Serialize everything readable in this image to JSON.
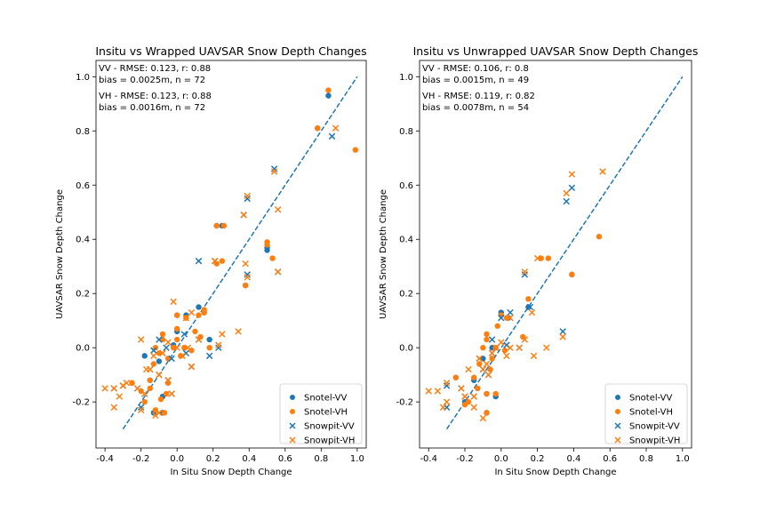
{
  "colors": {
    "vv": "#1f77b4",
    "vh": "#ff7f0e",
    "line": "#1f77b4"
  },
  "chart_data": [
    {
      "type": "scatter",
      "title": "Insitu vs Wrapped UAVSAR Snow Depth Changes",
      "xlabel": "In Situ Snow Depth Change",
      "ylabel": "UAVSAR Snow Depth Change",
      "xlim": [
        -0.45,
        1.05
      ],
      "ylim": [
        -0.37,
        1.06
      ],
      "xticks": [
        "-0.4",
        "-0.2",
        "0.0",
        "0.2",
        "0.4",
        "0.6",
        "0.8",
        "1.0"
      ],
      "yticks": [
        "-0.2",
        "0.0",
        "0.2",
        "0.4",
        "0.6",
        "0.8",
        "1.0"
      ],
      "stats": [
        "VV - RMSE: 0.123, r: 0.88",
        "bias = 0.0025m, n = 72",
        "VH - RMSE: 0.123, r: 0.88",
        "bias = 0.0016m, n = 72"
      ],
      "one_to_one": [
        [
          -0.3,
          -0.3
        ],
        [
          1.0,
          1.0
        ]
      ],
      "legend": [
        "Snotel-VV",
        "Snotel-VH",
        "Snowpit-VV",
        "Snowpit-VH"
      ],
      "legend_position": "lower-right",
      "series": [
        {
          "name": "Snotel-VV",
          "marker": "circle",
          "color": "#1f77b4",
          "points": [
            [
              0.84,
              0.93
            ],
            [
              0.78,
              0.81
            ],
            [
              0.5,
              0.37
            ],
            [
              0.5,
              0.36
            ],
            [
              0.38,
              0.23
            ],
            [
              0.25,
              0.45
            ],
            [
              0.22,
              0.45
            ],
            [
              0.15,
              0.13
            ],
            [
              0.12,
              0.15
            ],
            [
              0.0,
              0.06
            ],
            [
              0.0,
              0.12
            ],
            [
              -0.08,
              -0.24
            ],
            [
              -0.08,
              -0.18
            ],
            [
              -0.13,
              -0.24
            ],
            [
              -0.15,
              -0.12
            ],
            [
              -0.18,
              -0.03
            ],
            [
              -0.25,
              -0.13
            ],
            [
              -0.02,
              0.01
            ],
            [
              -0.1,
              -0.05
            ],
            [
              0.05,
              0.12
            ],
            [
              0.18,
              0.03
            ]
          ]
        },
        {
          "name": "Snotel-VH",
          "marker": "circle",
          "color": "#ff7f0e",
          "points": [
            [
              0.84,
              0.95
            ],
            [
              0.99,
              0.73
            ],
            [
              0.78,
              0.81
            ],
            [
              0.5,
              0.38
            ],
            [
              0.5,
              0.39
            ],
            [
              0.53,
              0.33
            ],
            [
              0.38,
              0.23
            ],
            [
              0.26,
              0.45
            ],
            [
              0.22,
              0.45
            ],
            [
              0.25,
              0.32
            ],
            [
              0.22,
              0.31
            ],
            [
              0.15,
              0.13
            ],
            [
              0.12,
              0.12
            ],
            [
              0.0,
              0.07
            ],
            [
              0.0,
              0.12
            ],
            [
              -0.07,
              -0.24
            ],
            [
              -0.09,
              -0.19
            ],
            [
              -0.12,
              -0.23
            ],
            [
              -0.15,
              -0.12
            ],
            [
              -0.15,
              -0.15
            ],
            [
              -0.18,
              -0.2
            ],
            [
              -0.2,
              -0.16
            ],
            [
              -0.25,
              -0.13
            ],
            [
              -0.02,
              0.0
            ],
            [
              -0.05,
              -0.04
            ],
            [
              -0.08,
              0.03
            ],
            [
              -0.08,
              0.05
            ],
            [
              -0.12,
              0.0
            ],
            [
              -0.13,
              -0.06
            ],
            [
              -0.1,
              -0.02
            ],
            [
              0.04,
              0.0
            ],
            [
              0.05,
              0.11
            ],
            [
              0.08,
              -0.01
            ],
            [
              0.13,
              0.04
            ],
            [
              0.15,
              0.14
            ],
            [
              0.18,
              0.0
            ],
            [
              0.02,
              -0.03
            ],
            [
              -0.05,
              -0.13
            ],
            [
              -0.06,
              -0.17
            ],
            [
              0.1,
              0.06
            ],
            [
              0.0,
              0.03
            ]
          ]
        },
        {
          "name": "Snowpit-VV",
          "marker": "x",
          "color": "#1f77b4",
          "points": [
            [
              0.86,
              0.78
            ],
            [
              0.54,
              0.66
            ],
            [
              0.56,
              0.28
            ],
            [
              0.39,
              0.55
            ],
            [
              0.39,
              0.27
            ],
            [
              0.37,
              0.49
            ],
            [
              0.21,
              0.32
            ],
            [
              0.12,
              0.32
            ],
            [
              0.12,
              0.03
            ],
            [
              0.18,
              -0.03
            ],
            [
              0.08,
              -0.07
            ],
            [
              -0.03,
              -0.17
            ],
            [
              -0.05,
              -0.12
            ],
            [
              -0.08,
              -0.02
            ],
            [
              -0.1,
              -0.1
            ],
            [
              -0.15,
              -0.08
            ],
            [
              -0.18,
              -0.17
            ],
            [
              -0.22,
              -0.15
            ],
            [
              -0.3,
              -0.14
            ],
            [
              -0.35,
              -0.15
            ],
            [
              -0.2,
              -0.22
            ],
            [
              -0.03,
              -0.04
            ],
            [
              0.05,
              -0.02
            ],
            [
              0.04,
              0.05
            ],
            [
              -0.06,
              0.0
            ],
            [
              -0.13,
              -0.01
            ],
            [
              -0.1,
              0.03
            ],
            [
              0.23,
              0.0
            ]
          ]
        },
        {
          "name": "Snowpit-VH",
          "marker": "x",
          "color": "#ff7f0e",
          "points": [
            [
              0.88,
              0.81
            ],
            [
              0.54,
              0.65
            ],
            [
              0.56,
              0.28
            ],
            [
              0.56,
              0.51
            ],
            [
              0.39,
              0.56
            ],
            [
              0.39,
              0.26
            ],
            [
              0.38,
              0.31
            ],
            [
              0.37,
              0.49
            ],
            [
              0.34,
              0.06
            ],
            [
              0.25,
              0.05
            ],
            [
              0.23,
              0.01
            ],
            [
              0.21,
              0.32
            ],
            [
              0.12,
              0.03
            ],
            [
              0.08,
              -0.07
            ],
            [
              0.08,
              0.13
            ],
            [
              0.05,
              0.11
            ],
            [
              -0.02,
              0.17
            ],
            [
              -0.03,
              -0.17
            ],
            [
              -0.05,
              -0.12
            ],
            [
              -0.08,
              -0.02
            ],
            [
              -0.1,
              -0.1
            ],
            [
              -0.13,
              -0.03
            ],
            [
              -0.15,
              -0.08
            ],
            [
              -0.17,
              -0.08
            ],
            [
              -0.2,
              0.03
            ],
            [
              -0.18,
              -0.17
            ],
            [
              -0.2,
              -0.23
            ],
            [
              -0.22,
              -0.15
            ],
            [
              -0.28,
              -0.13
            ],
            [
              -0.3,
              -0.14
            ],
            [
              -0.32,
              -0.18
            ],
            [
              -0.35,
              -0.15
            ],
            [
              -0.35,
              -0.22
            ],
            [
              -0.4,
              -0.15
            ],
            [
              -0.12,
              -0.25
            ],
            [
              -0.1,
              -0.24
            ],
            [
              0.0,
              0.0
            ],
            [
              0.06,
              0.0
            ],
            [
              -0.05,
              0.02
            ],
            [
              0.03,
              -0.03
            ]
          ]
        }
      ]
    },
    {
      "type": "scatter",
      "title": "Insitu vs Unwrapped UAVSAR Snow Depth Changes",
      "xlabel": "In Situ Snow Depth Change",
      "ylabel": "UAVSAR Snow Depth Change",
      "xlim": [
        -0.45,
        1.05
      ],
      "ylim": [
        -0.37,
        1.06
      ],
      "xticks": [
        "-0.4",
        "-0.2",
        "0.0",
        "0.2",
        "0.4",
        "0.6",
        "0.8",
        "1.0"
      ],
      "yticks": [
        "-0.2",
        "0.0",
        "0.2",
        "0.4",
        "0.6",
        "0.8",
        "1.0"
      ],
      "stats": [
        "VV - RMSE: 0.106, r: 0.8",
        "bias = 0.0015m, n = 49",
        "VH - RMSE: 0.119, r: 0.82",
        "bias = 0.0078m, n = 54"
      ],
      "one_to_one": [
        [
          -0.3,
          -0.3
        ],
        [
          1.0,
          1.0
        ]
      ],
      "legend": [
        "Snotel-VV",
        "Snotel-VH",
        "Snowpit-VV",
        "Snowpit-VH"
      ],
      "legend_position": "lower-right",
      "series": [
        {
          "name": "Snotel-VV",
          "marker": "circle",
          "color": "#1f77b4",
          "points": [
            [
              0.39,
              0.27
            ],
            [
              0.15,
              0.15
            ],
            [
              0.0,
              0.13
            ],
            [
              -0.03,
              -0.18
            ],
            [
              -0.08,
              -0.17
            ],
            [
              -0.08,
              -0.24
            ],
            [
              -0.13,
              -0.15
            ],
            [
              -0.15,
              -0.12
            ],
            [
              -0.2,
              -0.2
            ],
            [
              -0.25,
              -0.11
            ],
            [
              -0.05,
              0.0
            ],
            [
              -0.1,
              -0.04
            ],
            [
              0.04,
              0.11
            ]
          ]
        },
        {
          "name": "Snotel-VH",
          "marker": "circle",
          "color": "#ff7f0e",
          "points": [
            [
              0.54,
              0.41
            ],
            [
              0.39,
              0.27
            ],
            [
              0.26,
              0.33
            ],
            [
              0.22,
              0.33
            ],
            [
              0.15,
              0.18
            ],
            [
              0.12,
              0.04
            ],
            [
              0.0,
              0.12
            ],
            [
              0.03,
              0.11
            ],
            [
              -0.02,
              0.08
            ],
            [
              -0.03,
              -0.17
            ],
            [
              -0.08,
              -0.17
            ],
            [
              -0.08,
              -0.24
            ],
            [
              -0.13,
              -0.15
            ],
            [
              -0.15,
              -0.11
            ],
            [
              -0.18,
              -0.2
            ],
            [
              -0.2,
              -0.21
            ],
            [
              -0.25,
              -0.11
            ],
            [
              -0.08,
              0.05
            ],
            [
              -0.08,
              0.03
            ],
            [
              -0.1,
              0.0
            ],
            [
              -0.12,
              -0.06
            ],
            [
              -0.05,
              -0.04
            ],
            [
              0.02,
              -0.01
            ],
            [
              -0.03,
              0.0
            ],
            [
              -0.06,
              -0.08
            ]
          ]
        },
        {
          "name": "Snowpit-VV",
          "marker": "x",
          "color": "#1f77b4",
          "points": [
            [
              0.39,
              0.59
            ],
            [
              0.36,
              0.54
            ],
            [
              0.34,
              0.06
            ],
            [
              0.13,
              0.27
            ],
            [
              0.16,
              0.15
            ],
            [
              0.05,
              0.13
            ],
            [
              0.0,
              0.11
            ],
            [
              -0.03,
              0.0
            ],
            [
              -0.05,
              -0.02
            ],
            [
              -0.07,
              -0.1
            ],
            [
              -0.1,
              -0.08
            ],
            [
              -0.12,
              -0.04
            ],
            [
              -0.15,
              -0.18
            ],
            [
              -0.2,
              -0.18
            ],
            [
              -0.22,
              -0.15
            ],
            [
              -0.3,
              -0.22
            ],
            [
              -0.3,
              -0.14
            ],
            [
              -0.05,
              0.03
            ],
            [
              0.03,
              0.01
            ],
            [
              0.1,
              0.0
            ]
          ]
        },
        {
          "name": "Snowpit-VH",
          "marker": "x",
          "color": "#ff7f0e",
          "points": [
            [
              0.56,
              0.65
            ],
            [
              0.39,
              0.64
            ],
            [
              0.36,
              0.57
            ],
            [
              0.34,
              0.04
            ],
            [
              0.25,
              0.0
            ],
            [
              0.2,
              0.33
            ],
            [
              0.18,
              -0.03
            ],
            [
              0.17,
              0.13
            ],
            [
              0.13,
              0.03
            ],
            [
              0.13,
              0.28
            ],
            [
              0.1,
              0.0
            ],
            [
              0.05,
              0.11
            ],
            [
              0.03,
              -0.03
            ],
            [
              -0.03,
              0.0
            ],
            [
              -0.05,
              -0.02
            ],
            [
              -0.07,
              -0.1
            ],
            [
              -0.08,
              -0.06
            ],
            [
              -0.1,
              -0.08
            ],
            [
              -0.1,
              -0.26
            ],
            [
              -0.12,
              -0.04
            ],
            [
              -0.15,
              -0.18
            ],
            [
              -0.18,
              -0.08
            ],
            [
              -0.2,
              -0.18
            ],
            [
              -0.22,
              -0.15
            ],
            [
              -0.3,
              -0.13
            ],
            [
              -0.3,
              -0.2
            ],
            [
              -0.32,
              -0.22
            ],
            [
              -0.35,
              -0.16
            ],
            [
              -0.4,
              -0.16
            ],
            [
              -0.15,
              -0.22
            ],
            [
              0.0,
              0.02
            ],
            [
              0.05,
              0.0
            ]
          ]
        }
      ]
    }
  ]
}
